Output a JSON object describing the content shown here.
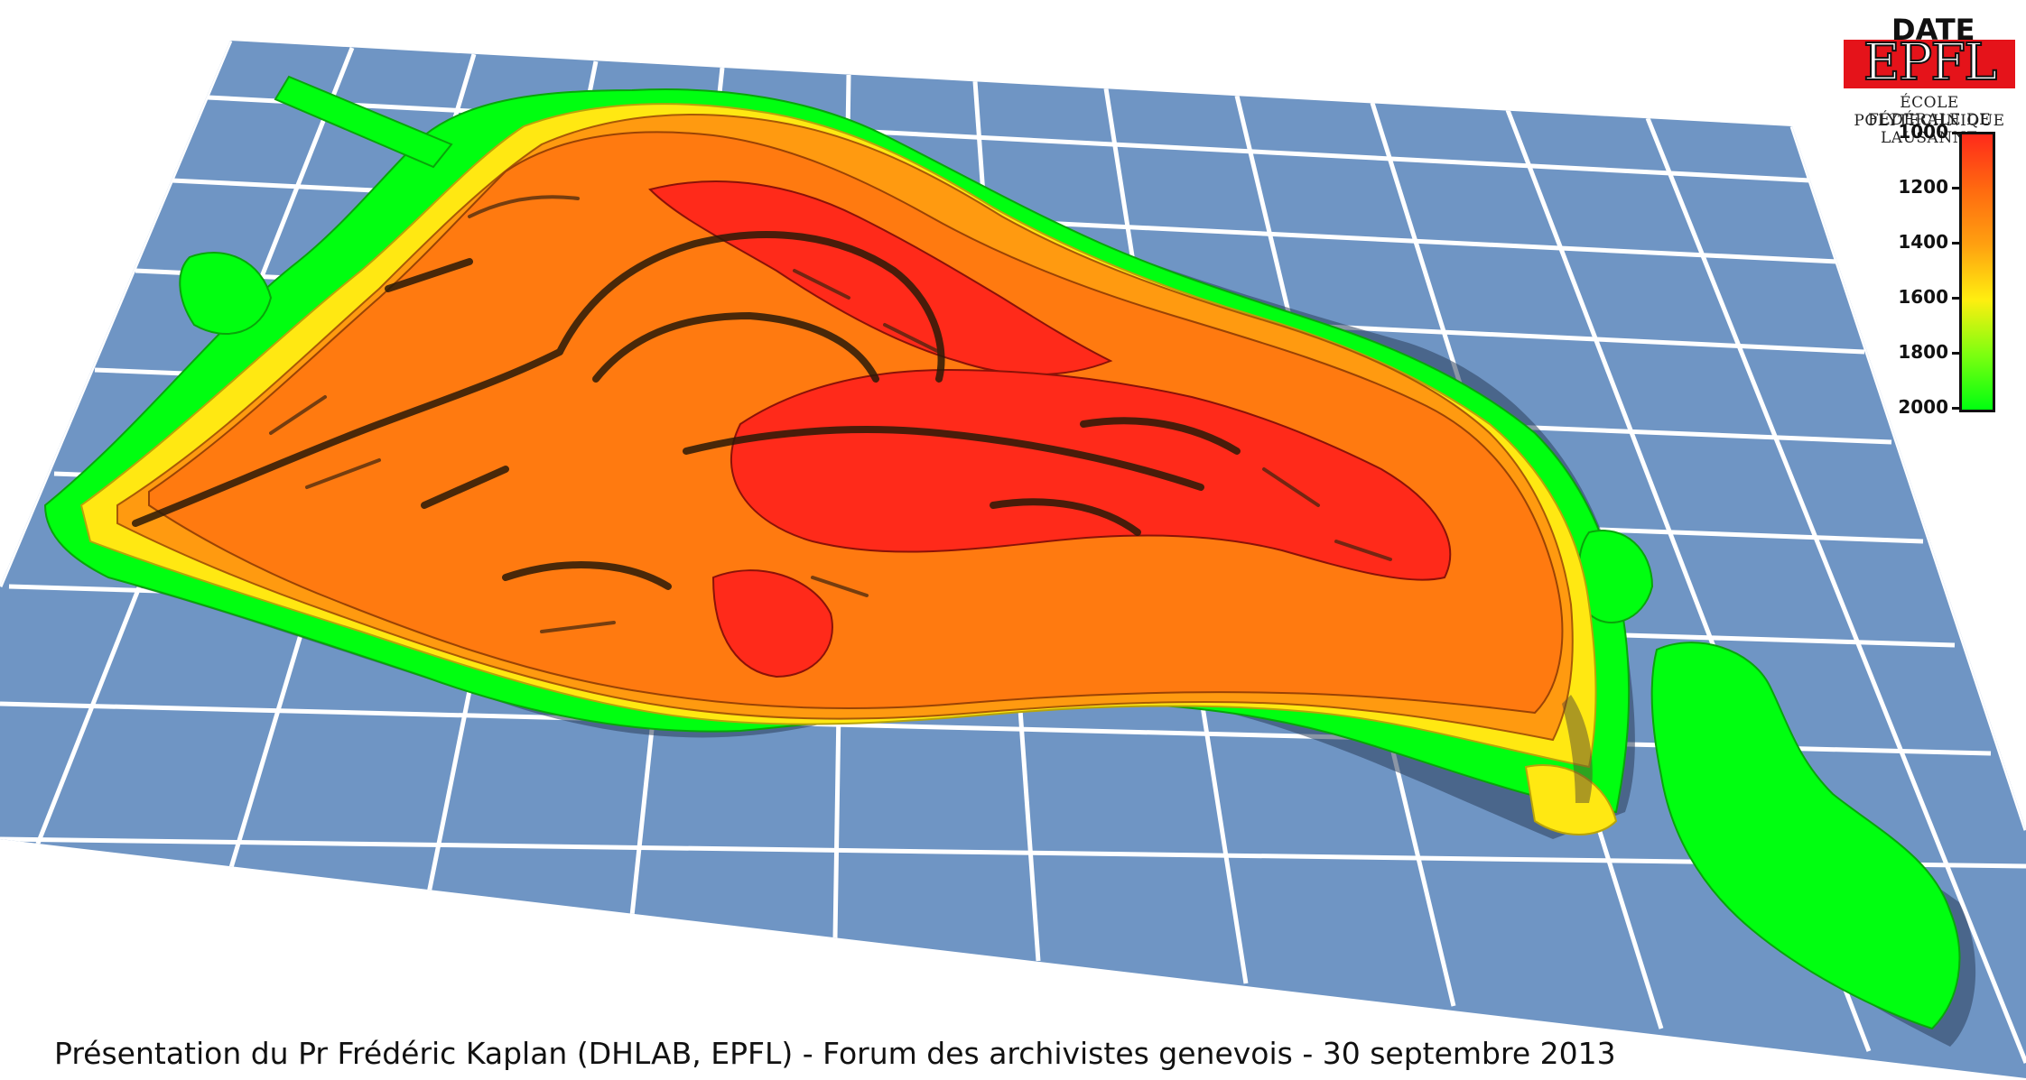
{
  "legend": {
    "title": "DATE",
    "ticks": [
      "1000",
      "1200",
      "1400",
      "1600",
      "1800",
      "2000"
    ],
    "color_top": "#ff2a1a",
    "color_bottom": "#00ff10"
  },
  "logo": {
    "mark": "EPFL",
    "line1": "ÉCOLE POLYTECHNIQUE",
    "line2": "FÉDÉRALE DE LAUSANNE",
    "color": "#e5131a"
  },
  "caption": "Présentation du Pr Frédéric Kaplan (DHLAB, EPFL) - Forum des archivistes genevois - 30 septembre 2013",
  "colors": {
    "water": "#6f95c4",
    "grid": "#ffffff",
    "period_1000": "#ff2a1a",
    "period_1200": "#ff7a10",
    "period_1400": "#ffa010",
    "period_1600": "#ffe812",
    "period_1800": "#7dff10",
    "period_2000": "#00ff10"
  }
}
